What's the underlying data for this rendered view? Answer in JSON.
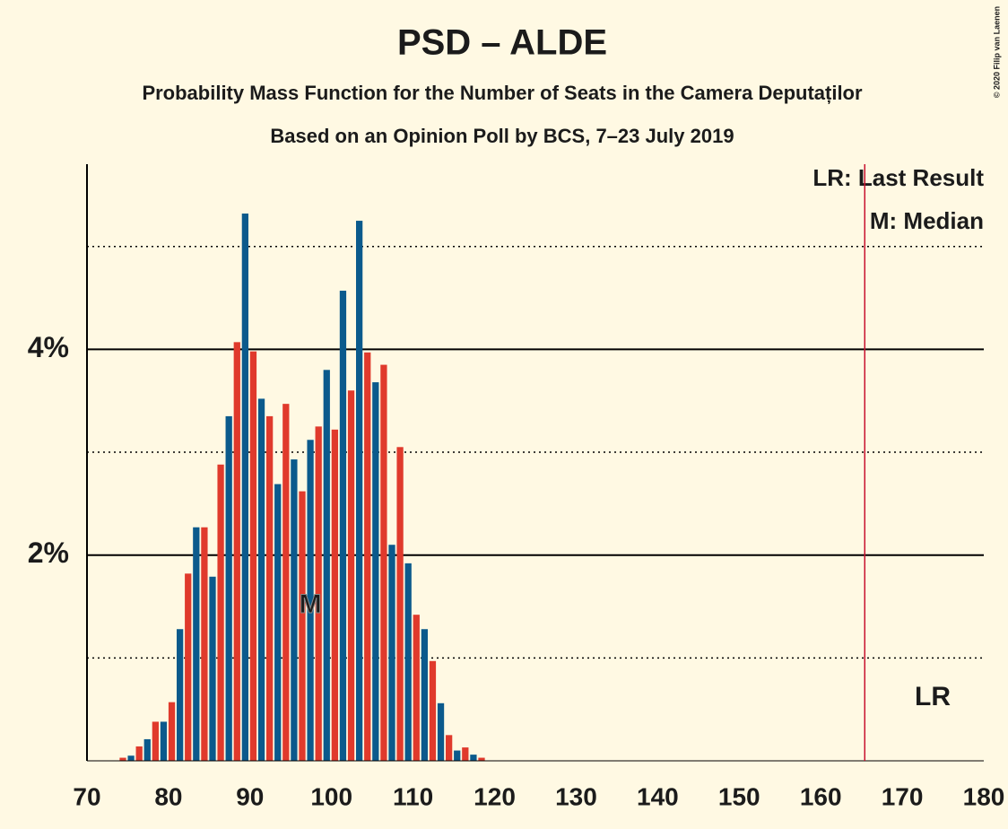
{
  "chart_data": {
    "type": "bar",
    "title": "PSD – ALDE",
    "subtitle": "Probability Mass Function for the Number of Seats in the Camera Deputaților",
    "subtitle2": "Based on an Opinion Poll by BCS, 7–23 July 2019",
    "copyright": "© 2020 Filip van Laenen",
    "legend_lines": [
      "LR: Last Result",
      "M: Median"
    ],
    "median_label": "M",
    "last_result_label": "LR",
    "median": 97,
    "last_result": 165,
    "colors": [
      "#e03a2c",
      "#0b5a8c"
    ],
    "lr_color": "#c8102e",
    "x": [
      70,
      71,
      72,
      73,
      74,
      75,
      76,
      77,
      78,
      79,
      80,
      81,
      82,
      83,
      84,
      85,
      86,
      87,
      88,
      89,
      90,
      91,
      92,
      93,
      94,
      95,
      96,
      97,
      98,
      99,
      100,
      101,
      102,
      103,
      104,
      105,
      106,
      107,
      108,
      109,
      110,
      111,
      112,
      113,
      114,
      115,
      116,
      117,
      118,
      119,
      120,
      121,
      122,
      123,
      124,
      125,
      126,
      127,
      128,
      129,
      130,
      131,
      132,
      133,
      134,
      135,
      136,
      137,
      138,
      139,
      140,
      141,
      142,
      143,
      144,
      145,
      146,
      147,
      148,
      149,
      150,
      151,
      152,
      153,
      154,
      155,
      156,
      157,
      158,
      159,
      160,
      161,
      162,
      163,
      164,
      165,
      166,
      167,
      168,
      169,
      170,
      171,
      172,
      173,
      174,
      175,
      176,
      177,
      178,
      179,
      180
    ],
    "values": [
      0,
      0,
      0,
      0,
      0.03,
      0.05,
      0.14,
      0.21,
      0.38,
      0.38,
      0.57,
      1.28,
      1.82,
      2.27,
      2.27,
      1.79,
      2.88,
      3.35,
      4.07,
      5.32,
      3.98,
      3.52,
      3.35,
      2.69,
      3.47,
      2.93,
      2.62,
      3.12,
      3.25,
      3.8,
      3.22,
      4.57,
      3.6,
      5.25,
      3.97,
      3.68,
      3.85,
      2.1,
      3.05,
      1.92,
      1.42,
      1.28,
      0.97,
      0.56,
      0.25,
      0.1,
      0.13,
      0.06,
      0.03,
      0,
      0,
      0,
      0,
      0,
      0,
      0,
      0,
      0,
      0,
      0,
      0,
      0,
      0,
      0,
      0,
      0,
      0,
      0,
      0,
      0,
      0,
      0,
      0,
      0,
      0,
      0,
      0,
      0,
      0,
      0,
      0,
      0,
      0,
      0,
      0,
      0,
      0,
      0,
      0,
      0,
      0,
      0,
      0,
      0,
      0,
      0,
      0,
      0,
      0,
      0,
      0,
      0,
      0,
      0,
      0,
      0,
      0,
      0,
      0,
      0,
      0
    ],
    "xlim": [
      70,
      180
    ],
    "xticks": [
      70,
      80,
      90,
      100,
      110,
      120,
      130,
      140,
      150,
      160,
      170,
      180
    ],
    "ylim": [
      0,
      5.8
    ],
    "yticks": [
      {
        "value": 2,
        "label": "2%"
      },
      {
        "value": 4,
        "label": "4%"
      }
    ],
    "minor_grid": [
      1,
      3,
      5
    ]
  }
}
